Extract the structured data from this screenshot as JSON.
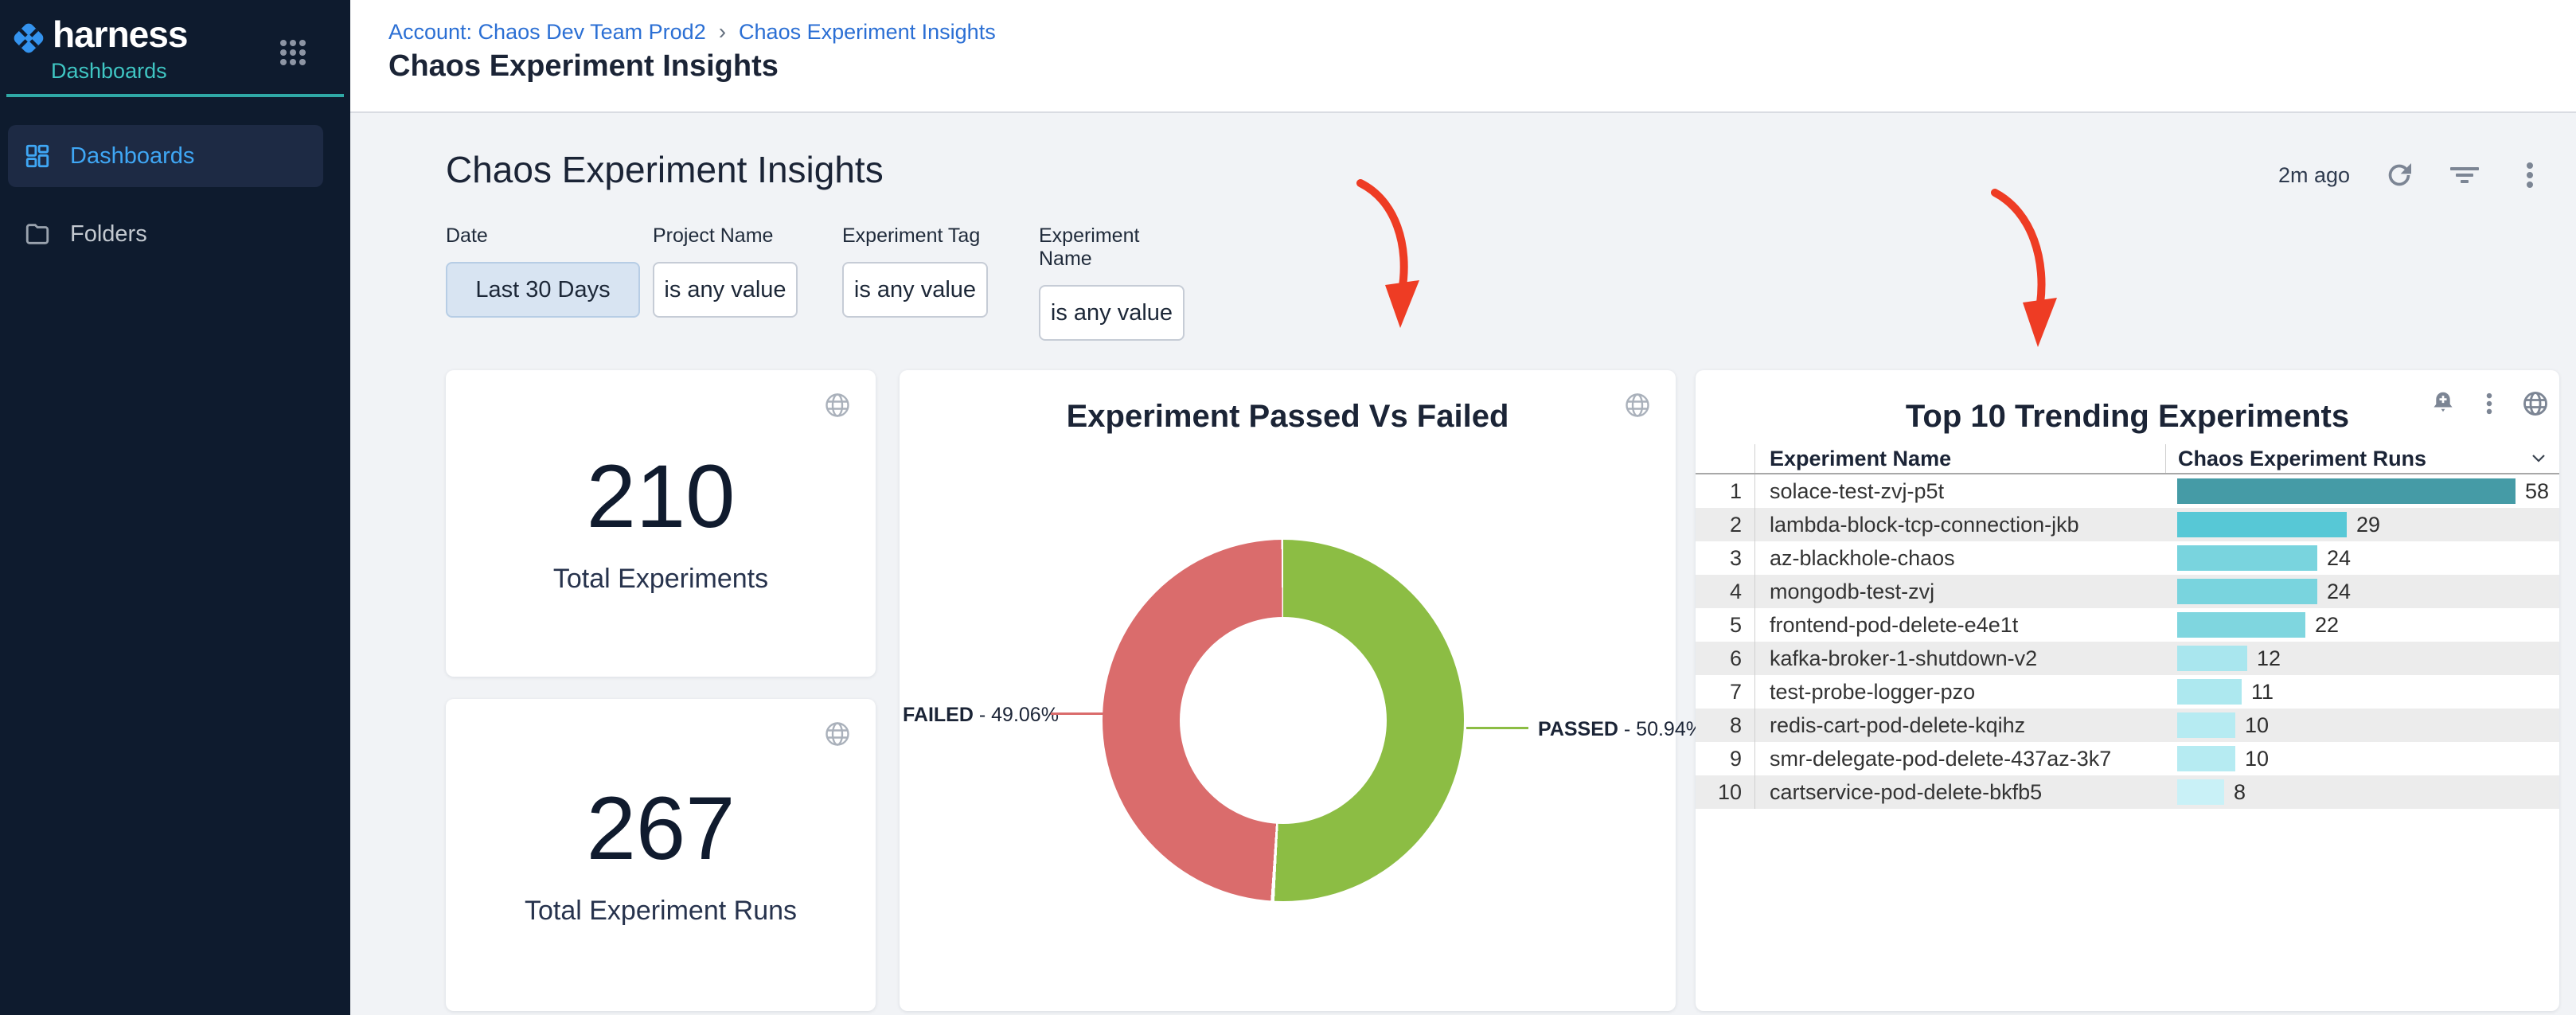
{
  "sidebar": {
    "logo_text": "harness",
    "module_label": "Dashboards",
    "items": [
      {
        "label": "Dashboards",
        "active": true
      },
      {
        "label": "Folders",
        "active": false
      }
    ]
  },
  "header": {
    "breadcrumb": [
      "Account: Chaos Dev Team Prod2",
      "Chaos Experiment Insights"
    ],
    "breadcrumb_separator": "›",
    "page_title": "Chaos Experiment Insights"
  },
  "dashboard": {
    "title": "Chaos Experiment Insights",
    "last_refreshed": "2m ago",
    "filters": [
      {
        "label": "Date",
        "value": "Last 30 Days",
        "active": true
      },
      {
        "label": "Project Name",
        "value": "is any value",
        "active": false
      },
      {
        "label": "Experiment Tag",
        "value": "is any value",
        "active": false
      },
      {
        "label": "Experiment Name",
        "value": "is any value",
        "active": false
      }
    ]
  },
  "stat_cards": [
    {
      "value": "210",
      "label": "Total Experiments"
    },
    {
      "value": "267",
      "label": "Total Experiment Runs"
    }
  ],
  "chart_data": [
    {
      "type": "pie",
      "title": "Experiment Passed Vs Failed",
      "slices": [
        {
          "label": "PASSED",
          "value": 50.94,
          "color": "#8cbd44"
        },
        {
          "label": "FAILED",
          "value": 49.06,
          "color": "#da6c6c"
        }
      ],
      "callouts": {
        "failed": {
          "name": "FAILED",
          "pct": "- 49.06%"
        },
        "passed": {
          "name": "PASSED",
          "pct": "- 50.94%"
        }
      },
      "legend_position": "sides",
      "donut": true
    },
    {
      "type": "bar",
      "title": "Top 10 Trending Experiments",
      "columns": [
        "Experiment Name",
        "Chaos Experiment Runs"
      ],
      "max_runs": 58,
      "rows": [
        {
          "rank": 1,
          "name": "solace-test-zvj-p5t",
          "runs": 58,
          "color": "#459ba6"
        },
        {
          "rank": 2,
          "name": "lambda-block-tcp-connection-jkb",
          "runs": 29,
          "color": "#57c8d6"
        },
        {
          "rank": 3,
          "name": "az-blackhole-chaos",
          "runs": 24,
          "color": "#79d4de"
        },
        {
          "rank": 4,
          "name": "mongodb-test-zvj",
          "runs": 24,
          "color": "#79d4de"
        },
        {
          "rank": 5,
          "name": "frontend-pod-delete-e4e1t",
          "runs": 22,
          "color": "#7fd6df"
        },
        {
          "rank": 6,
          "name": "kafka-broker-1-shutdown-v2",
          "runs": 12,
          "color": "#a9e6ee"
        },
        {
          "rank": 7,
          "name": "test-probe-logger-pzo",
          "runs": 11,
          "color": "#ade8ef"
        },
        {
          "rank": 8,
          "name": "redis-cart-pod-delete-kqihz",
          "runs": 10,
          "color": "#b6ebf2"
        },
        {
          "rank": 9,
          "name": "smr-delegate-pod-delete-437az-3k7",
          "runs": 10,
          "color": "#b6ebf2"
        },
        {
          "rank": 10,
          "name": "cartservice-pod-delete-bkfb5",
          "runs": 8,
          "color": "#c9f1f7"
        }
      ]
    }
  ],
  "icons": {
    "apps_grid": "3x3-dots",
    "refresh": "circular-arrow",
    "filter": "filter-lines",
    "kebab": "vertical-dots",
    "globe": "globe",
    "bell_plus": "bell-with-plus",
    "chevron_down": "v",
    "dashboards": "grid-squares",
    "folder": "folder-outline"
  },
  "colors": {
    "sidebar_bg": "#0e1b2e",
    "sidebar_active_bg": "#1d2a44",
    "nav_blue": "#3fa7f5",
    "teal": "#3fc6c3",
    "link_blue": "#2b6fd4",
    "title_navy": "#1b2436",
    "passed_green": "#8cbd44",
    "failed_red": "#da6c6c",
    "arrow_red": "#ee3c24",
    "main_bg": "#f1f3f6",
    "row_alt": "#ececec"
  }
}
